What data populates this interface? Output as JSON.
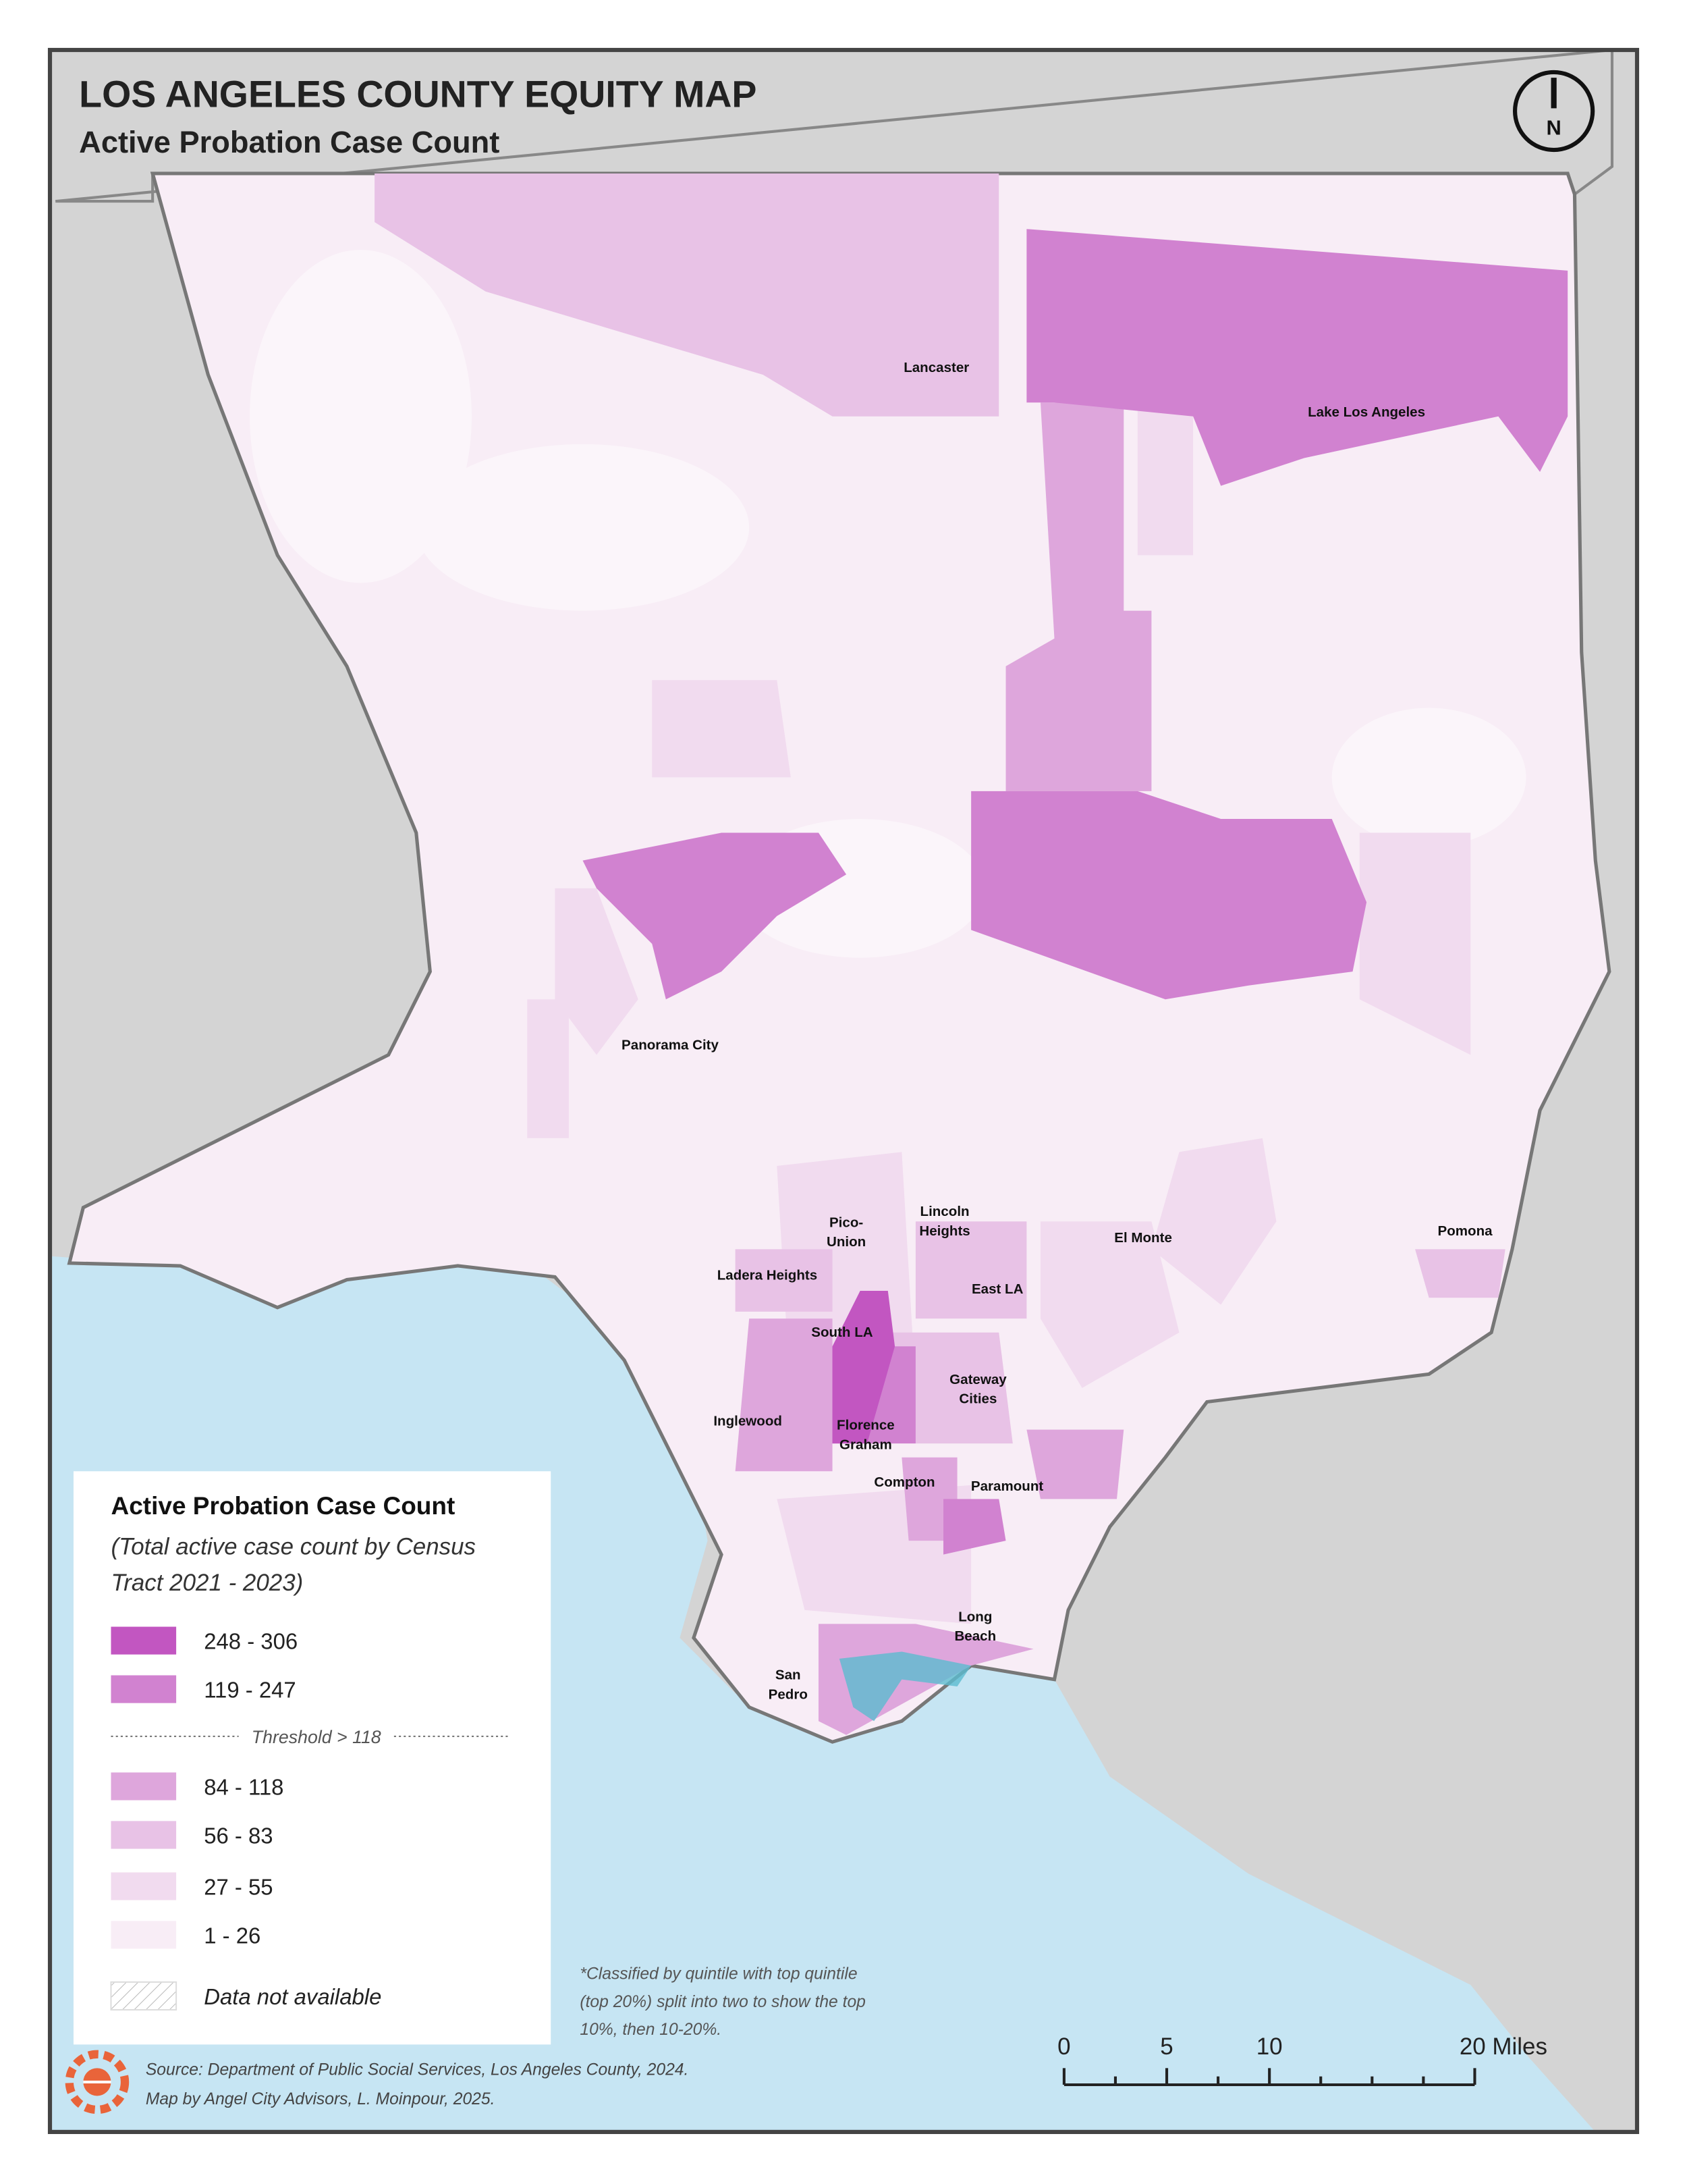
{
  "header": {
    "title": "LOS ANGELES COUNTY EQUITY MAP",
    "subtitle": "Active Probation Case Count",
    "north": "N"
  },
  "places": [
    [
      "Lancaster"
    ],
    [
      "Lake Los Angeles"
    ],
    [
      "Panorama City"
    ],
    [
      "Pico-",
      "Union"
    ],
    [
      "Lincoln",
      "Heights"
    ],
    [
      "El Monte"
    ],
    [
      "Pomona"
    ],
    [
      "Ladera Heights"
    ],
    [
      "East LA"
    ],
    [
      "South LA"
    ],
    [
      "Gateway",
      "Cities"
    ],
    [
      "Inglewood"
    ],
    [
      "Florence",
      "Graham"
    ],
    [
      "Compton"
    ],
    [
      "Paramount"
    ],
    [
      "Long",
      "Beach"
    ],
    [
      "San",
      "Pedro"
    ]
  ],
  "legend": {
    "title": "Active Probation Case Count",
    "subtitle": [
      "(Total active case count by Census",
      "Tract 2021 - 2023)"
    ],
    "items": [
      {
        "label": "248 - 306",
        "color": "#c256c1"
      },
      {
        "label": "119 - 247",
        "color": "#d182d0"
      },
      {
        "label": "84 - 118",
        "color": "#dea6dc"
      },
      {
        "label": "56 - 83",
        "color": "#e8c2e6"
      },
      {
        "label": "27 - 55",
        "color": "#f1dbef"
      },
      {
        "label": "1 - 26",
        "color": "#f8edf6"
      }
    ],
    "threshold": "Threshold > 118",
    "not_available": "Data not available"
  },
  "note": [
    "*Classified by quintile with top quintile",
    "(top 20%) split into two to show the top",
    "10%, then 10-20%."
  ],
  "scale_bar": [
    "0",
    "5",
    "10",
    "20 Miles"
  ],
  "source": [
    "Source: Department of Public Social Services, Los Angeles County, 2024.",
    "Map by Angel City Advisors, L. Moinpour, 2025."
  ]
}
